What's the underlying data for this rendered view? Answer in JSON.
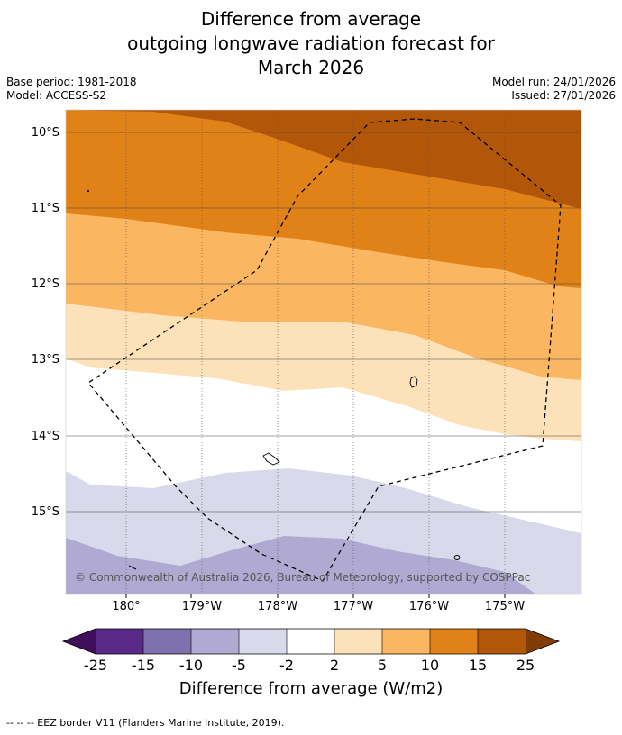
{
  "title": {
    "line1": "Difference from average",
    "line2": "outgoing longwave radiation forecast for",
    "line3": "March 2026"
  },
  "meta": {
    "base_period": "Base period: 1981-2018",
    "model": "Model: ACCESS-S2",
    "model_run": "Model run: 24/01/2026",
    "issued": "Issued: 27/01/2026"
  },
  "map": {
    "lat_labels": [
      "10°S",
      "11°S",
      "12°S",
      "13°S",
      "14°S",
      "15°S"
    ],
    "lon_labels": [
      "180°",
      "179°W",
      "178°W",
      "177°W",
      "176°W",
      "175°W"
    ],
    "copyright": "© Commonwealth of Australia 2026, Bureau of Meteorology, supported by COSPPac"
  },
  "colorbar": {
    "ticks": [
      "-25",
      "-15",
      "-10",
      "-5",
      "-2",
      "2",
      "5",
      "10",
      "15",
      "25"
    ],
    "colors": {
      "below": "#3f0f5c",
      "c1": "#5a2887",
      "c2": "#7f70ae",
      "c3": "#b0a9d2",
      "c4": "#d8d9ea",
      "c5": "#ffffff",
      "c6": "#fde1b8",
      "c7": "#fab661",
      "c8": "#e08217",
      "c9": "#b25609",
      "above": "#7f3b08"
    },
    "label": "Difference from average (W/m2)"
  },
  "legend": {
    "eez": "--  --  -- EEZ border V11 (Flanders Marine Institute, 2019)."
  }
}
